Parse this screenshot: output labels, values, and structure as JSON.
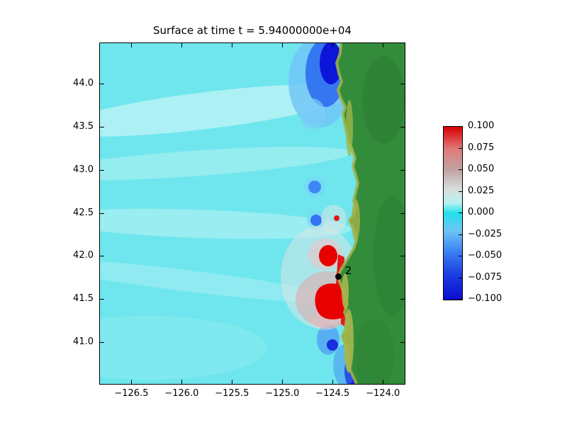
{
  "figure": {
    "title": "Surface at time t = 5.94000000e+04",
    "background": "#ffffff"
  },
  "chart_data": {
    "type": "heatmap",
    "title": "Surface at time t = 5.94000000e+04",
    "xlabel": "",
    "ylabel": "",
    "field": "sea surface elevation (tsunami simulation snapshot, Pacific coast)",
    "xlim": [
      -126.82,
      -123.79
    ],
    "ylim": [
      40.52,
      44.48
    ],
    "x_ticks": [
      -126.5,
      -126.0,
      -125.5,
      -125.0,
      -124.5,
      -124.0
    ],
    "x_tick_labels": [
      "−126.5",
      "−126.0",
      "−125.5",
      "−125.0",
      "−124.5",
      "−124.0"
    ],
    "y_ticks": [
      41.0,
      41.5,
      42.0,
      42.5,
      43.0,
      43.5,
      44.0
    ],
    "y_tick_labels": [
      "41.0",
      "41.5",
      "42.0",
      "42.5",
      "43.0",
      "43.5",
      "44.0"
    ],
    "grid": false,
    "colorbar": {
      "position": "right",
      "min": -0.1,
      "max": 0.1,
      "ticks": [
        0.1,
        0.075,
        0.05,
        0.025,
        0.0,
        -0.025,
        -0.05,
        -0.075,
        -0.1
      ],
      "tick_labels": [
        "0.100",
        "0.075",
        "0.050",
        "0.025",
        "0.000",
        "−0.025",
        "−0.050",
        "−0.075",
        "−0.100"
      ],
      "colormap_stops": [
        {
          "value": 0.1,
          "color": "#d90000"
        },
        {
          "value": 0.075,
          "color": "#df7b7b"
        },
        {
          "value": 0.05,
          "color": "#c2a3a3"
        },
        {
          "value": 0.025,
          "color": "#d6dddd"
        },
        {
          "value": 0.0,
          "color": "#21e1ea"
        },
        {
          "value": -0.025,
          "color": "#6fc4f6"
        },
        {
          "value": -0.05,
          "color": "#3b82f2"
        },
        {
          "value": -0.075,
          "color": "#1c3fe2"
        },
        {
          "value": -0.1,
          "color": "#0a0ccf"
        }
      ]
    },
    "gauges": [
      {
        "label": "2",
        "lon": -124.44,
        "lat": 41.76
      }
    ],
    "features": [
      {
        "name": "ocean-background",
        "color": "#6fe6ee",
        "description": "cyan near-zero sea surface covering most of the domain with lighter wave bands fanning offshore"
      },
      {
        "name": "land",
        "color": "#328c3a",
        "description": "green land mass along right edge (Oregon / Northern California coast) with yellow-green coastal relief"
      },
      {
        "name": "positive-anomaly",
        "color": "#e80000",
        "description": "red high-amplitude patches near the coast around 41.4-42.0 N"
      },
      {
        "name": "negative-anomaly",
        "color": "#0a0ccf",
        "description": "dark blue low-amplitude patches near the coast around 44.1-44.5 N, 42.4 N, 42.8 N and 40.9-41.1 N"
      }
    ]
  },
  "colors": {
    "ocean": "#6fe6ee",
    "land": "#328c3a",
    "coast_highlight": "#a4b24c",
    "positive": "#e80000",
    "negative": "#0a0ccf",
    "frame": "#000000",
    "text": "#000000",
    "gauge_dot": "#000000"
  }
}
